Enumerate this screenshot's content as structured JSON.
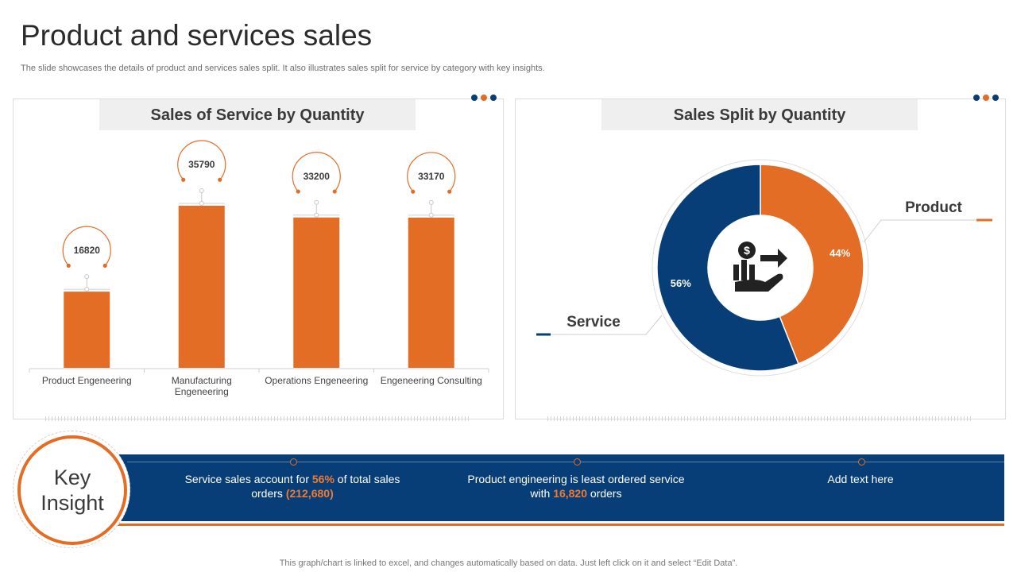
{
  "page": {
    "title": "Product and services sales",
    "subtitle": "The slide showcases the details of product and services sales split. It also illustrates sales split for service by category with key insights.",
    "footer": "This graph/chart is linked to excel,  and changes automatically based on data. Just left click on it and select “Edit Data”."
  },
  "colors": {
    "orange": "#e46d26",
    "navy": "#073e78",
    "panel_header_bg": "#efefef"
  },
  "decor": {
    "dot_colors": [
      "#073e78",
      "#e46d26",
      "#073e78"
    ]
  },
  "left_panel": {
    "header": "Sales of Service by Quantity"
  },
  "right_panel": {
    "header": "Sales Split by Quantity",
    "center_icon": "money-hand-growth-icon"
  },
  "chart_data": [
    {
      "type": "bar",
      "title": "Sales of Service by Quantity",
      "categories": [
        "Product Engeneering",
        "Manufacturing Engeneering",
        "Operations Engeneering",
        "Engeneering Consulting"
      ],
      "category_lines": [
        [
          "Product Engeneering"
        ],
        [
          "Manufacturing",
          "Engeneering"
        ],
        [
          "Operations Engeneering"
        ],
        [
          "Engeneering Consulting"
        ]
      ],
      "values": [
        16820,
        35790,
        33200,
        33170
      ],
      "value_labels": [
        "16820",
        "35790",
        "33200",
        "33170"
      ],
      "ylim": [
        0,
        40000
      ],
      "grid": false,
      "legend": "none",
      "bar_color": "#e46d26"
    },
    {
      "type": "pie",
      "title": "Sales Split by Quantity",
      "donut": true,
      "labels": [
        "Product",
        "Service"
      ],
      "values": [
        44,
        56
      ],
      "value_labels": [
        "44%",
        "56%"
      ],
      "colors": [
        "#e46d26",
        "#073e78"
      ]
    }
  ],
  "key_insight": {
    "label_line1": "Key",
    "label_line2": "Insight",
    "items": [
      {
        "before": "Service sales account for ",
        "hl1": "56%",
        "mid": " of total sales orders ",
        "hl2": "(212,680)",
        "after": ""
      },
      {
        "before": "Product engineering  is least ordered service with ",
        "hl1": "16,820",
        "mid": " orders",
        "hl2": "",
        "after": ""
      },
      {
        "before": "Add text here",
        "hl1": "",
        "mid": "",
        "hl2": "",
        "after": ""
      }
    ]
  }
}
